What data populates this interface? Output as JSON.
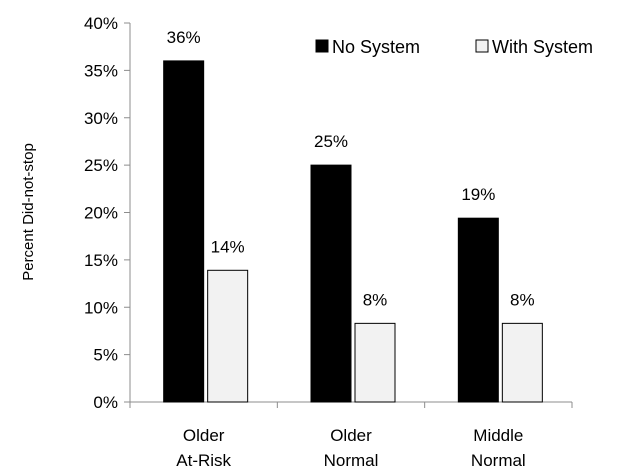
{
  "chart_data": {
    "type": "bar",
    "title": "",
    "xlabel": "",
    "ylabel": "Percent Did-not-stop",
    "ylim": [
      0,
      40
    ],
    "yticks": [
      0,
      5,
      10,
      15,
      20,
      25,
      30,
      35,
      40
    ],
    "ytick_labels": [
      "0%",
      "5%",
      "10%",
      "15%",
      "20%",
      "25%",
      "30%",
      "35%",
      "40%"
    ],
    "grid": false,
    "legend_position": "top-right",
    "categories": [
      [
        "Older",
        "At-Risk"
      ],
      [
        "Older",
        "Normal"
      ],
      [
        "Middle",
        "Normal"
      ]
    ],
    "series": [
      {
        "name": "No System",
        "color": "#000000",
        "values": [
          36,
          25,
          19.4
        ],
        "labels": [
          "36%",
          "25%",
          "19%"
        ]
      },
      {
        "name": "With System",
        "color": "#f2f2f2",
        "values": [
          13.9,
          8.3,
          8.3
        ],
        "labels": [
          "14%",
          "8%",
          "8%"
        ]
      }
    ]
  }
}
